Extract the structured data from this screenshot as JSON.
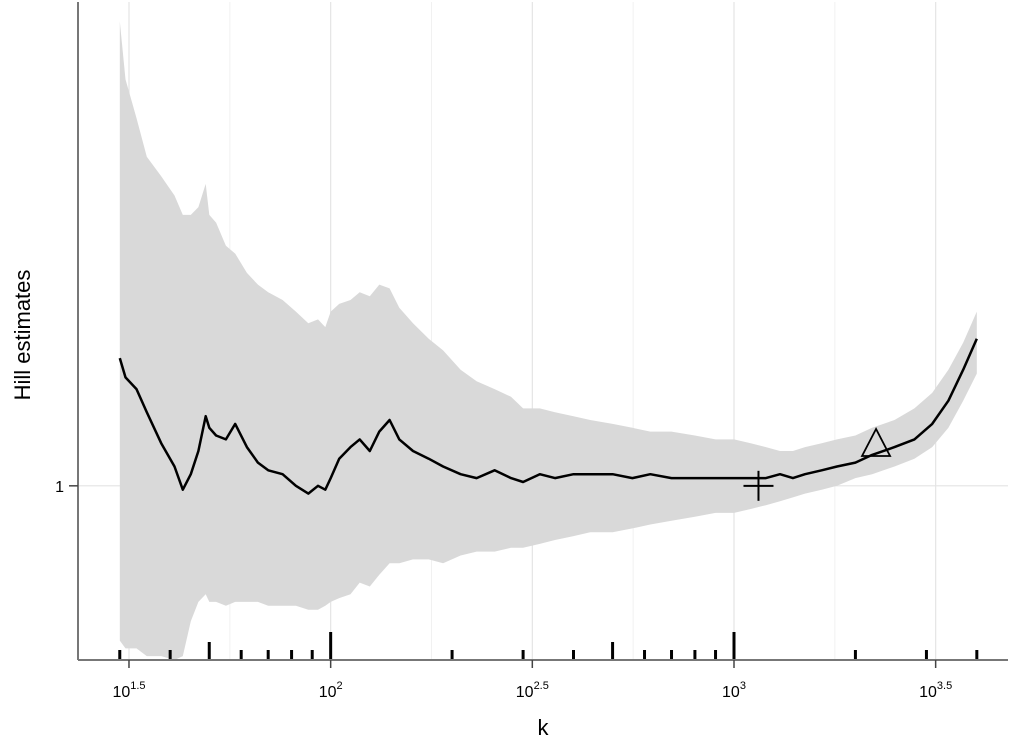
{
  "chart_data": {
    "type": "line",
    "title": "",
    "xlabel": "k",
    "ylabel": "Hill estimates",
    "x_scale": "log10",
    "xlim": [
      30,
      4000
    ],
    "ylim": [
      0.55,
      2.25
    ],
    "grid": true,
    "legend": "none",
    "x_ticks": [
      {
        "value": 31.62,
        "base": "10",
        "exp": "1.5"
      },
      {
        "value": 100,
        "base": "10",
        "exp": "2"
      },
      {
        "value": 316.2,
        "base": "10",
        "exp": "2.5"
      },
      {
        "value": 1000,
        "base": "10",
        "exp": "3"
      },
      {
        "value": 3162,
        "base": "10",
        "exp": "3.5"
      }
    ],
    "y_ticks": [
      {
        "value": 1,
        "label": "1"
      }
    ],
    "series": [
      {
        "name": "",
        "color": "#000000",
        "x": [
          30,
          31,
          33,
          35,
          38,
          41,
          43,
          45,
          47,
          49,
          50,
          52,
          55,
          58,
          62,
          66,
          70,
          76,
          82,
          88,
          93,
          97,
          100,
          105,
          112,
          118,
          125,
          132,
          140,
          148,
          160,
          175,
          190,
          210,
          230,
          255,
          280,
          300,
          330,
          360,
          400,
          440,
          500,
          560,
          620,
          700,
          800,
          900,
          1000,
          1100,
          1200,
          1300,
          1400,
          1500,
          1650,
          1800,
          2000,
          2200,
          2500,
          2800,
          3100,
          3400,
          3700,
          4000
        ],
        "y": [
          1.33,
          1.28,
          1.25,
          1.19,
          1.11,
          1.05,
          0.99,
          1.03,
          1.09,
          1.18,
          1.15,
          1.13,
          1.12,
          1.16,
          1.1,
          1.06,
          1.04,
          1.03,
          1.0,
          0.98,
          1.0,
          0.99,
          1.02,
          1.07,
          1.1,
          1.12,
          1.09,
          1.14,
          1.17,
          1.12,
          1.09,
          1.07,
          1.05,
          1.03,
          1.02,
          1.04,
          1.02,
          1.01,
          1.03,
          1.02,
          1.03,
          1.03,
          1.03,
          1.02,
          1.03,
          1.02,
          1.02,
          1.02,
          1.02,
          1.02,
          1.02,
          1.03,
          1.02,
          1.03,
          1.04,
          1.05,
          1.06,
          1.08,
          1.1,
          1.12,
          1.16,
          1.22,
          1.3,
          1.38
        ]
      }
    ],
    "confidence_band": {
      "color": "#d9d9d9",
      "x": [
        30,
        31,
        33,
        35,
        38,
        41,
        43,
        45,
        47,
        49,
        50,
        52,
        55,
        58,
        62,
        66,
        70,
        76,
        82,
        88,
        93,
        97,
        100,
        105,
        112,
        118,
        125,
        132,
        140,
        148,
        160,
        175,
        190,
        210,
        230,
        255,
        280,
        300,
        330,
        360,
        400,
        440,
        500,
        560,
        620,
        700,
        800,
        900,
        1000,
        1100,
        1200,
        1300,
        1400,
        1500,
        1650,
        1800,
        2000,
        2200,
        2500,
        2800,
        3100,
        3400,
        3700,
        4000
      ],
      "upper": [
        2.2,
        2.05,
        1.95,
        1.85,
        1.8,
        1.75,
        1.7,
        1.7,
        1.72,
        1.78,
        1.7,
        1.68,
        1.62,
        1.6,
        1.55,
        1.52,
        1.5,
        1.48,
        1.45,
        1.42,
        1.43,
        1.41,
        1.45,
        1.47,
        1.48,
        1.5,
        1.49,
        1.52,
        1.51,
        1.46,
        1.42,
        1.38,
        1.35,
        1.3,
        1.27,
        1.25,
        1.23,
        1.2,
        1.2,
        1.19,
        1.18,
        1.17,
        1.16,
        1.15,
        1.14,
        1.14,
        1.13,
        1.12,
        1.12,
        1.11,
        1.1,
        1.09,
        1.09,
        1.1,
        1.11,
        1.12,
        1.13,
        1.15,
        1.17,
        1.2,
        1.24,
        1.3,
        1.37,
        1.45
      ],
      "lower": [
        0.6,
        0.58,
        0.58,
        0.56,
        0.56,
        0.55,
        0.56,
        0.65,
        0.7,
        0.72,
        0.7,
        0.7,
        0.69,
        0.7,
        0.7,
        0.7,
        0.69,
        0.69,
        0.69,
        0.68,
        0.68,
        0.69,
        0.7,
        0.71,
        0.72,
        0.75,
        0.74,
        0.77,
        0.8,
        0.8,
        0.81,
        0.81,
        0.8,
        0.82,
        0.83,
        0.83,
        0.84,
        0.84,
        0.85,
        0.86,
        0.87,
        0.88,
        0.88,
        0.89,
        0.9,
        0.91,
        0.92,
        0.93,
        0.93,
        0.94,
        0.95,
        0.96,
        0.97,
        0.98,
        0.99,
        1.0,
        1.02,
        1.03,
        1.05,
        1.07,
        1.1,
        1.15,
        1.22,
        1.29
      ]
    },
    "markers": [
      {
        "name": "plus",
        "symbol": "+",
        "x": 1150,
        "y": 1.0
      },
      {
        "name": "triangle",
        "symbol": "△",
        "x": 2250,
        "y": 1.09
      }
    ],
    "rug_ticks": [
      {
        "x": 30,
        "size": "small"
      },
      {
        "x": 40,
        "size": "small"
      },
      {
        "x": 50,
        "size": "medium"
      },
      {
        "x": 60,
        "size": "small"
      },
      {
        "x": 70,
        "size": "small"
      },
      {
        "x": 80,
        "size": "small"
      },
      {
        "x": 90,
        "size": "small"
      },
      {
        "x": 100,
        "size": "large"
      },
      {
        "x": 200,
        "size": "small"
      },
      {
        "x": 300,
        "size": "small"
      },
      {
        "x": 400,
        "size": "small"
      },
      {
        "x": 500,
        "size": "medium"
      },
      {
        "x": 600,
        "size": "small"
      },
      {
        "x": 700,
        "size": "small"
      },
      {
        "x": 800,
        "size": "small"
      },
      {
        "x": 900,
        "size": "small"
      },
      {
        "x": 1000,
        "size": "large"
      },
      {
        "x": 2000,
        "size": "small"
      },
      {
        "x": 3000,
        "size": "small"
      },
      {
        "x": 4000,
        "size": "small"
      }
    ]
  }
}
